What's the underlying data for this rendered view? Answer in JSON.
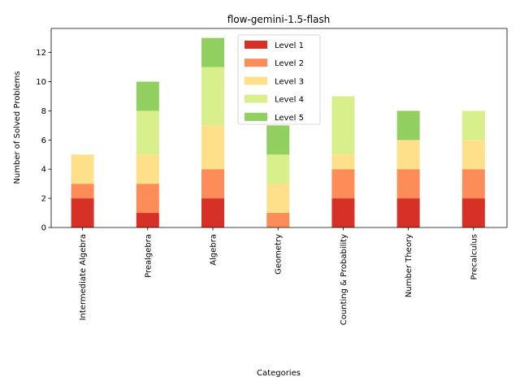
{
  "chart_data": {
    "type": "bar",
    "stacked": true,
    "title": "flow-gemini-1.5-flash",
    "xlabel": "Categories",
    "ylabel": "Number of Solved Problems",
    "categories": [
      "Intermediate Algebra",
      "Prealgebra",
      "Algebra",
      "Geometry",
      "Counting & Probability",
      "Number Theory",
      "Precalculus"
    ],
    "series": [
      {
        "name": "Level 1",
        "color": "#d73027",
        "values": [
          2,
          1,
          2,
          0,
          2,
          2,
          2
        ]
      },
      {
        "name": "Level 2",
        "color": "#fc8d59",
        "values": [
          1,
          2,
          2,
          1,
          2,
          2,
          2
        ]
      },
      {
        "name": "Level 3",
        "color": "#fee08b",
        "values": [
          2,
          2,
          3,
          2,
          1,
          2,
          2
        ]
      },
      {
        "name": "Level 4",
        "color": "#d9ef8b",
        "values": [
          0,
          3,
          4,
          2,
          4,
          0,
          2
        ]
      },
      {
        "name": "Level 5",
        "color": "#91cf60",
        "values": [
          0,
          2,
          2,
          2,
          0,
          2,
          0
        ]
      }
    ],
    "ylim": [
      0,
      13.65
    ],
    "yticks": [
      0,
      2,
      4,
      6,
      8,
      10,
      12
    ],
    "grid": false,
    "legend_position": "top-center"
  }
}
